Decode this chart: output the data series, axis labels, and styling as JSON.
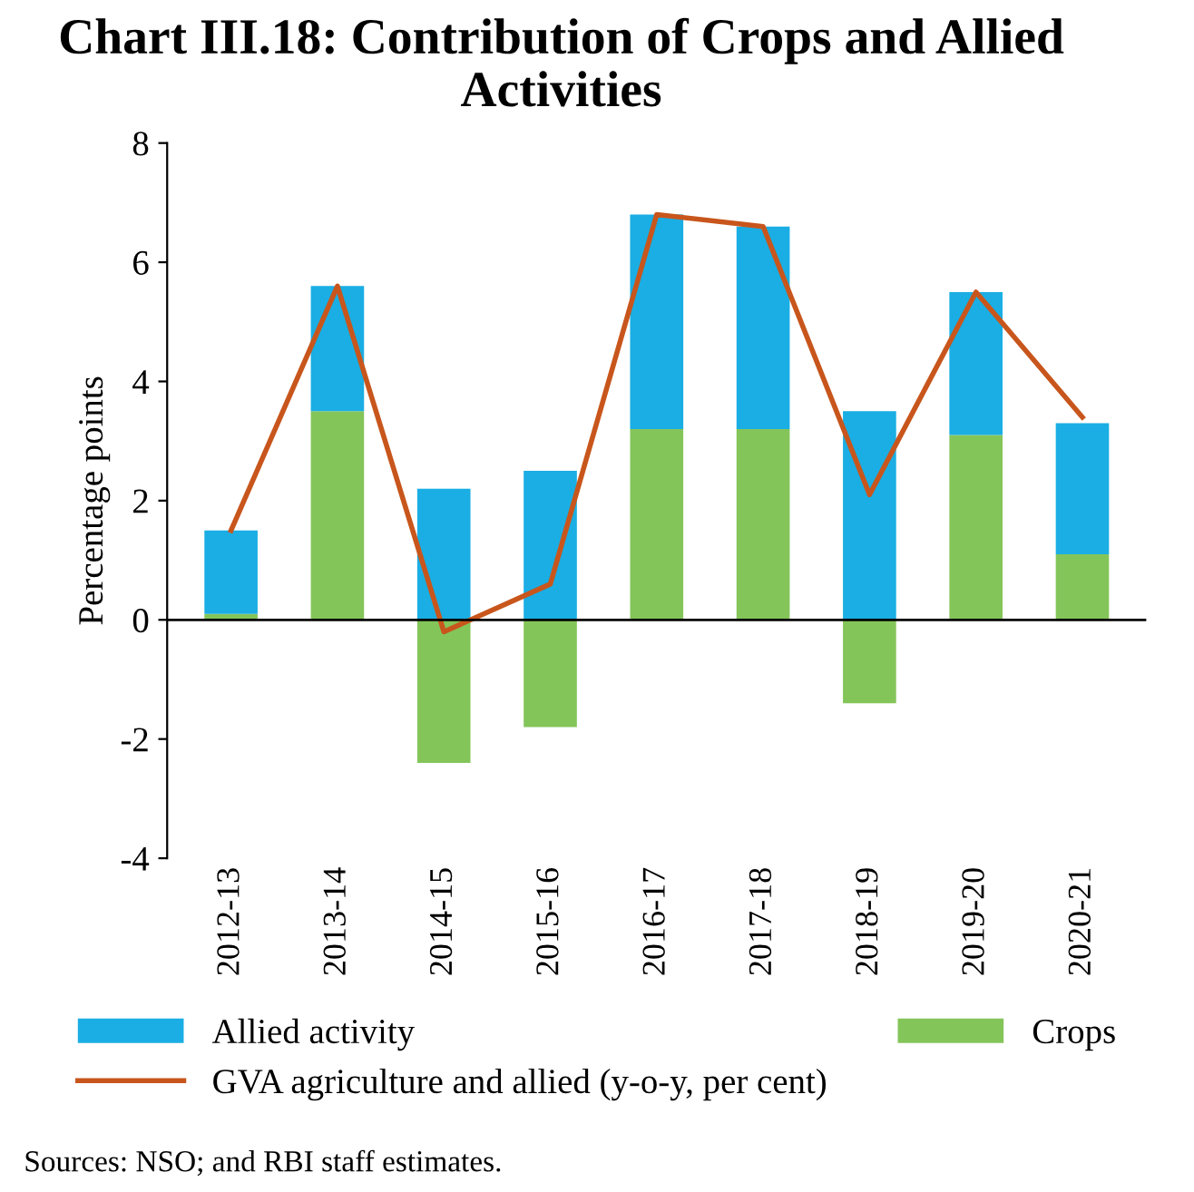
{
  "chart_data": {
    "type": "bar",
    "stacked": true,
    "title": "Chart III.18: Contribution of Crops and Allied Activities",
    "ylabel": "Percentage points",
    "categories": [
      "2012-13",
      "2013-14",
      "2014-15",
      "2015-16",
      "2016-17",
      "2017-18",
      "2018-19",
      "2019-20",
      "2020-21"
    ],
    "series": [
      {
        "name": "Crops",
        "color": "#84c55a",
        "values": [
          0.1,
          3.5,
          -2.4,
          -1.8,
          3.2,
          3.2,
          -1.4,
          3.1,
          1.1
        ]
      },
      {
        "name": "Allied activity",
        "color": "#1aaee4",
        "values": [
          1.4,
          2.1,
          2.2,
          2.5,
          3.6,
          3.4,
          3.5,
          2.4,
          2.2
        ]
      },
      {
        "name": "GVA agriculture and allied (y-o-y, per cent)",
        "type": "line",
        "color": "#c8561c",
        "values": [
          1.5,
          5.6,
          -0.2,
          0.6,
          6.8,
          6.6,
          2.1,
          5.5,
          3.4
        ]
      }
    ],
    "ylim": [
      -4,
      8
    ],
    "yticks": [
      -4,
      -2,
      0,
      2,
      4,
      6,
      8
    ],
    "legend": "bottom",
    "annotations": [
      "Sources: NSO; and RBI staff estimates."
    ]
  }
}
